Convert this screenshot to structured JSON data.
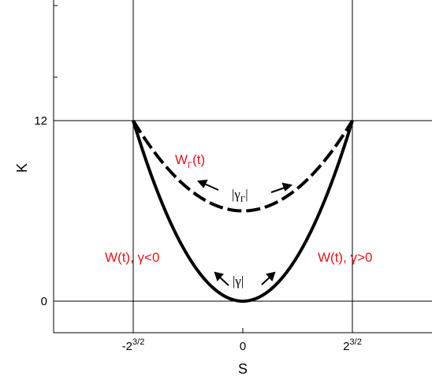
{
  "chart_data": {
    "type": "line",
    "title": "",
    "xlabel": "S",
    "ylabel": "K",
    "xlim": [
      -5.0,
      5.0
    ],
    "ylim": [
      -3.0,
      32.0
    ],
    "grid": false,
    "x_ticks": [
      {
        "value": -2.828,
        "label": "-2",
        "sup": "3/2"
      },
      {
        "value": 0,
        "label": "0",
        "sup": ""
      },
      {
        "value": 2.828,
        "label": "2",
        "sup": "3/2"
      }
    ],
    "y_ticks": [
      {
        "value": 0,
        "label": "0"
      },
      {
        "value": 12,
        "label": "12"
      }
    ],
    "reference_lines": {
      "vertical": [
        -2.828,
        2.828
      ],
      "horizontal": [
        0,
        12
      ]
    },
    "series": [
      {
        "style": "dashed",
        "color": "#000000",
        "x": [
          -2.828,
          -2.4,
          -2.0,
          -1.6,
          -1.2,
          -0.8,
          -0.4,
          0,
          0.4,
          0.8,
          1.2,
          1.6,
          2.0,
          2.4,
          2.828
        ],
        "y": [
          12.0,
          10.62,
          9.5,
          8.56,
          7.8,
          7.2,
          6.8,
          6.0,
          6.8,
          7.2,
          7.8,
          8.56,
          9.5,
          10.62,
          12.0
        ]
      },
      {
        "style": "solid",
        "color": "#000000",
        "x": [
          -2.828,
          -2.4,
          -2.0,
          -1.6,
          -1.2,
          -0.8,
          -0.4,
          0,
          0.4,
          0.8,
          1.2,
          1.6,
          2.0,
          2.4,
          2.828
        ],
        "y": [
          12.0,
          8.64,
          6.0,
          3.84,
          2.16,
          0.96,
          0.24,
          0.0,
          0.24,
          0.96,
          2.16,
          3.84,
          6.0,
          8.64,
          12.0
        ]
      }
    ],
    "annotations": {
      "w_gamma_main": "W",
      "w_gamma_sub": "Γ",
      "w_gamma_tail": "(t)",
      "gamma_upper_open": "|",
      "gamma_upper_letter": "γ",
      "gamma_upper_sub": "Γ",
      "gamma_upper_close": "|",
      "gamma_lower": "|γ|",
      "w_left": "W(t), γ<0",
      "w_right": "W(t), γ>0"
    },
    "colors": {
      "annotation": "#e8141c",
      "curve": "#000000",
      "axes": "#000000"
    }
  }
}
